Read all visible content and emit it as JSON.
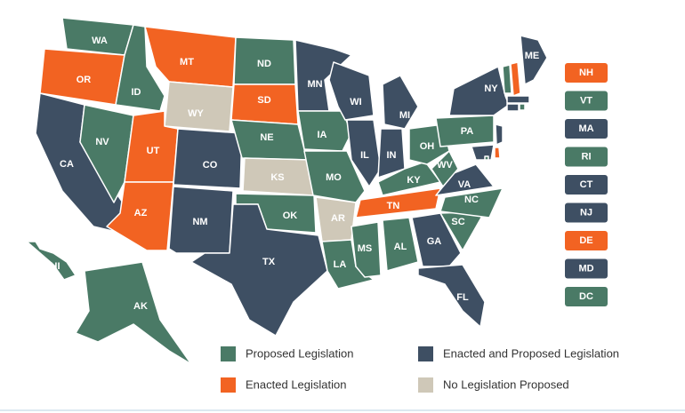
{
  "states": [
    {
      "label": "WA",
      "color": "#4a7a66"
    },
    {
      "label": "OR",
      "color": "#f26322"
    },
    {
      "label": "CA",
      "color": "#3e4f63"
    },
    {
      "label": "NV",
      "color": "#4a7a66"
    },
    {
      "label": "ID",
      "color": "#4a7a66"
    },
    {
      "label": "MT",
      "color": "#f26322"
    },
    {
      "label": "WY",
      "color": "#cfc8b8"
    },
    {
      "label": "UT",
      "color": "#f26322"
    },
    {
      "label": "AZ",
      "color": "#f26322"
    },
    {
      "label": "CO",
      "color": "#3e4f63"
    },
    {
      "label": "NM",
      "color": "#3e4f63"
    },
    {
      "label": "ND",
      "color": "#4a7a66"
    },
    {
      "label": "SD",
      "color": "#f26322"
    },
    {
      "label": "NE",
      "color": "#4a7a66"
    },
    {
      "label": "KS",
      "color": "#cfc8b8"
    },
    {
      "label": "OK",
      "color": "#4a7a66"
    },
    {
      "label": "TX",
      "color": "#3e4f63"
    },
    {
      "label": "MN",
      "color": "#3e4f63"
    },
    {
      "label": "IA",
      "color": "#4a7a66"
    },
    {
      "label": "MO",
      "color": "#4a7a66"
    },
    {
      "label": "AR",
      "color": "#cfc8b8"
    },
    {
      "label": "LA",
      "color": "#4a7a66"
    },
    {
      "label": "WI",
      "color": "#3e4f63"
    },
    {
      "label": "IL",
      "color": "#3e4f63"
    },
    {
      "label": "MS",
      "color": "#4a7a66"
    },
    {
      "label": "MI",
      "color": "#3e4f63"
    },
    {
      "label": "IN",
      "color": "#3e4f63"
    },
    {
      "label": "KY",
      "color": "#4a7a66"
    },
    {
      "label": "TN",
      "color": "#f26322"
    },
    {
      "label": "AL",
      "color": "#4a7a66"
    },
    {
      "label": "GA",
      "color": "#3e4f63"
    },
    {
      "label": "FL",
      "color": "#3e4f63"
    },
    {
      "label": "SC",
      "color": "#4a7a66"
    },
    {
      "label": "NC",
      "color": "#4a7a66"
    },
    {
      "label": "VA",
      "color": "#3e4f63"
    },
    {
      "label": "WV",
      "color": "#4a7a66"
    },
    {
      "label": "OH",
      "color": "#4a7a66"
    },
    {
      "label": "PA",
      "color": "#4a7a66"
    },
    {
      "label": "NY",
      "color": "#3e4f63"
    },
    {
      "label": "ME",
      "color": "#3e4f63"
    },
    {
      "label": "HI",
      "color": "#4a7a66"
    },
    {
      "label": "AK",
      "color": "#4a7a66"
    }
  ],
  "small_states": [
    {
      "label": "NH",
      "color": "#f26322"
    },
    {
      "label": "VT",
      "color": "#4a7a66"
    },
    {
      "label": "MA",
      "color": "#3e4f63"
    },
    {
      "label": "RI",
      "color": "#4a7a66"
    },
    {
      "label": "CT",
      "color": "#3e4f63"
    },
    {
      "label": "NJ",
      "color": "#3e4f63"
    },
    {
      "label": "DE",
      "color": "#f26322"
    },
    {
      "label": "MD",
      "color": "#3e4f63"
    },
    {
      "label": "DC",
      "color": "#4a7a66"
    }
  ],
  "legend": [
    {
      "label": "Proposed Legislation",
      "color": "#4a7a66"
    },
    {
      "label": "Enacted and Proposed Legislation",
      "color": "#3e4f63"
    },
    {
      "label": "Enacted Legislation",
      "color": "#f26322"
    },
    {
      "label": "No Legislation Proposed",
      "color": "#cfc8b8"
    }
  ]
}
